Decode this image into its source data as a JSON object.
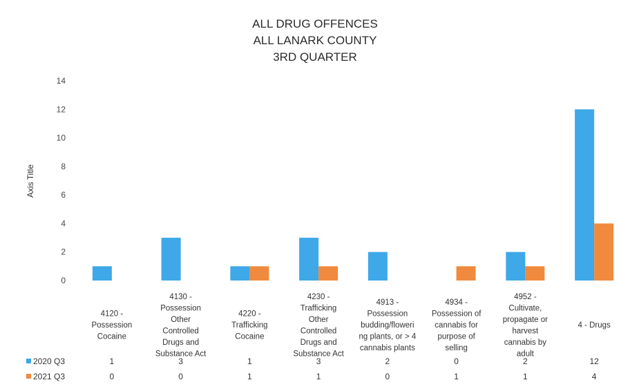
{
  "chart_data": {
    "type": "bar",
    "title": [
      "ALL DRUG OFFENCES",
      "ALL LANARK COUNTY",
      "3RD QUARTER"
    ],
    "ylabel": "Axis Title",
    "xlabel": "",
    "ylim": [
      0,
      14
    ],
    "yticks": [
      0,
      2,
      4,
      6,
      8,
      10,
      12,
      14
    ],
    "grid": false,
    "categories": [
      [
        "4120 -",
        "Possession",
        "Cocaine"
      ],
      [
        "4130 -",
        "Possession",
        "Other",
        "Controlled",
        "Drugs and",
        "Substance Act"
      ],
      [
        "4220 -",
        "Trafficking",
        "Cocaine"
      ],
      [
        "4230 -",
        "Trafficking",
        "Other",
        "Controlled",
        "Drugs and",
        "Substance Act"
      ],
      [
        "4913 -",
        "Possession",
        "budding/floweri",
        "ng plants, or > 4",
        "cannabis plants"
      ],
      [
        "4934 -",
        "Possession of",
        "cannabis for",
        "purpose of",
        "selling"
      ],
      [
        "4952 -",
        "Cultivate,",
        "propagate or",
        "harvest",
        "cannabis by",
        "adult"
      ],
      [
        "4 - Drugs"
      ]
    ],
    "series": [
      {
        "name": "2020 Q3",
        "color": "#3ea8e8",
        "values": [
          1,
          3,
          1,
          3,
          2,
          0,
          2,
          12
        ]
      },
      {
        "name": "2021 Q3",
        "color": "#f08a3e",
        "values": [
          0,
          0,
          1,
          1,
          0,
          1,
          1,
          4
        ]
      }
    ],
    "legend": "data-table"
  }
}
